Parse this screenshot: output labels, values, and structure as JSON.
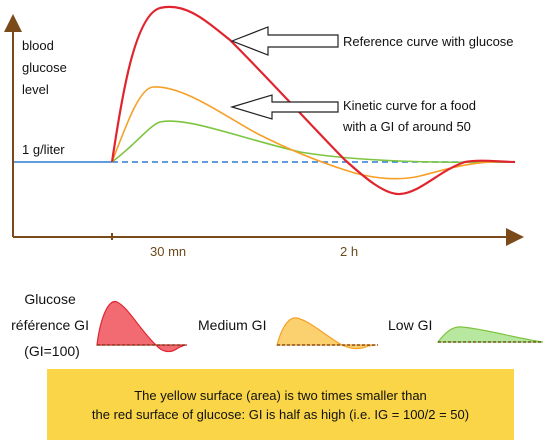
{
  "diagram": {
    "y_axis_label": [
      "blood",
      "glucose",
      "level"
    ],
    "baseline_label": "1 g/liter",
    "x_ticks": [
      "30 mn",
      "2 h"
    ],
    "annotations": {
      "reference": "Reference curve with glucose",
      "kinetic": [
        "Kinetic curve for a food",
        "with a GI of around 50"
      ]
    },
    "legend": {
      "glucose": [
        "Glucose",
        "référence GI",
        "(GI=100)"
      ],
      "medium": "Medium GI",
      "low": "Low GI"
    },
    "colors": {
      "reference_curve": "#e0252f",
      "medium_curve": "#f7a028",
      "low_curve": "#7dc540",
      "baseline": "#2d7dd2",
      "axis": "#7a4a1a",
      "note_background": "#f9d547"
    }
  },
  "note": {
    "line1": "The yellow surface (area) is two times smaller than",
    "line2": "the red surface of glucose: GI is half as high (i.e. IG = 100/2 = 50)"
  }
}
